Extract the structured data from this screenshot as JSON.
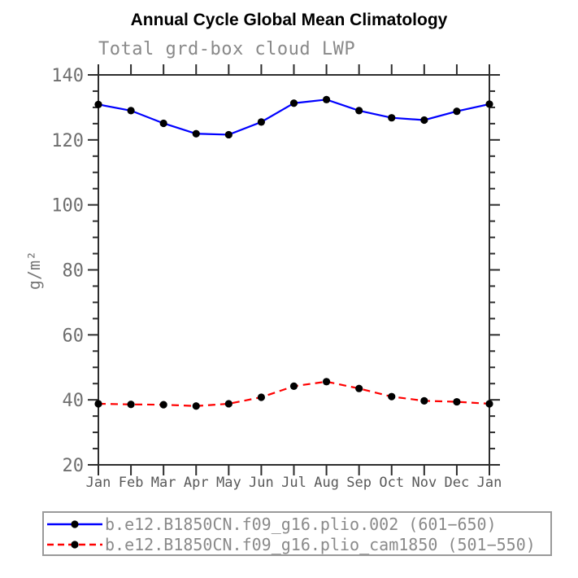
{
  "chart": {
    "title": "Annual Cycle Global Mean Climatology",
    "subtitle": "Total grd-box cloud LWP",
    "ylabel": "g/m²"
  },
  "chart_data": {
    "type": "line",
    "title": "Annual Cycle Global Mean Climatology",
    "subtitle": "Total grd-box cloud LWP",
    "xlabel": "",
    "ylabel": "g/m^2",
    "categories": [
      "Jan",
      "Feb",
      "Mar",
      "Apr",
      "May",
      "Jun",
      "Jul",
      "Aug",
      "Sep",
      "Oct",
      "Nov",
      "Dec",
      "Jan"
    ],
    "ylim": [
      20,
      140
    ],
    "ytick_major": 20,
    "ytick_minor": 5,
    "grid": false,
    "legend_position": "bottom",
    "series": [
      {
        "name": "b.e12.B1850CN.f09_g16.plio.002 (601−650)",
        "color": "#0000ff",
        "style": "solid",
        "marker": "filled-circle",
        "marker_color": "#000000",
        "values": [
          130.9,
          129.0,
          125.1,
          121.9,
          121.6,
          125.5,
          131.3,
          132.4,
          129.0,
          126.8,
          126.1,
          128.8,
          131.0
        ]
      },
      {
        "name": "b.e12.B1850CN.f09_g16.plio_cam1850 (501−550)",
        "color": "#ff0000",
        "style": "dashed",
        "marker": "filled-circle",
        "marker_color": "#000000",
        "values": [
          38.8,
          38.6,
          38.5,
          38.1,
          38.8,
          40.8,
          44.2,
          45.6,
          43.5,
          41.0,
          39.7,
          39.4,
          38.8
        ]
      }
    ]
  }
}
